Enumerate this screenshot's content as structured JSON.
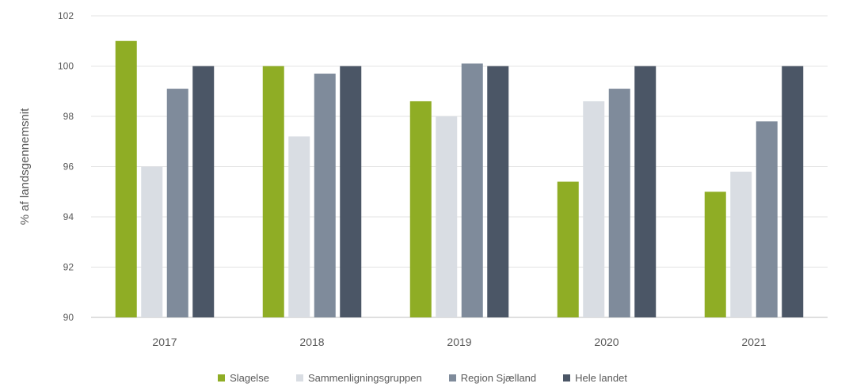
{
  "chart_data": {
    "type": "bar",
    "ylabel": "% af landsgennemsnit",
    "xlabel": "",
    "ylim": [
      90,
      102
    ],
    "yticks": [
      90,
      92,
      94,
      96,
      98,
      100,
      102
    ],
    "grid": true,
    "legend_position": "bottom",
    "categories": [
      "2017",
      "2018",
      "2019",
      "2020",
      "2021"
    ],
    "series": [
      {
        "name": "Slagelse",
        "color": "#8fad25",
        "values": [
          101.0,
          100.0,
          98.6,
          95.4,
          95.0
        ]
      },
      {
        "name": "Sammenligningsgruppen",
        "color": "#d9dde3",
        "values": [
          96.0,
          97.2,
          98.0,
          98.6,
          95.8
        ]
      },
      {
        "name": "Region Sjælland",
        "color": "#7f8b9b",
        "values": [
          99.1,
          99.7,
          100.1,
          99.1,
          97.8
        ]
      },
      {
        "name": "Hele landet",
        "color": "#4b5666",
        "values": [
          100.0,
          100.0,
          100.0,
          100.0,
          100.0
        ]
      }
    ]
  }
}
